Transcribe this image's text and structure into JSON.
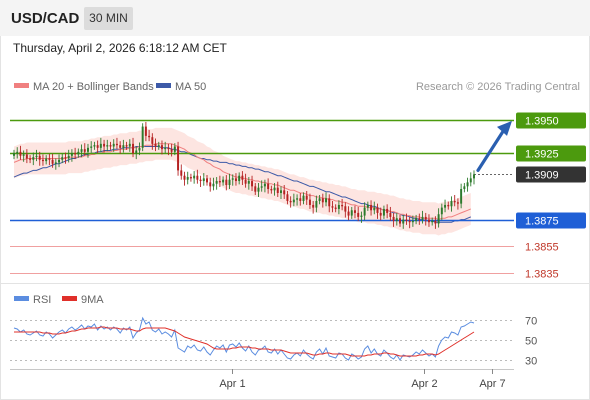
{
  "header": {
    "symbol": "USD/CAD",
    "timeframe": "30 MIN",
    "datetime": "Thursday, April 2, 2026 6:18:12 AM CET"
  },
  "legend": {
    "ma20_bb": "MA 20 + Bollinger Bands",
    "ma50": "MA 50",
    "rsi": "RSI",
    "ma9": "9MA"
  },
  "credit": "Research © 2026 Trading Central",
  "colors": {
    "ma20": "#f08080",
    "bollinger_fill": "#fde0dc",
    "ma50": "#3d5aa8",
    "resistance": "#4c9a0e",
    "support": "#1f5fd6",
    "support_light": "#f0a0a0",
    "current_price_bg": "#333333",
    "candle_up": "#2c7a2c",
    "candle_down": "#b52222",
    "rsi_line": "#5b8de0",
    "rsi_ma": "#e0302a",
    "arrow": "#2a5fb0"
  },
  "chart_data": {
    "type": "candlestick",
    "symbol": "USD/CAD",
    "interval": "30 MIN",
    "ylim": [
      1.3828,
      1.3965
    ],
    "x_ticks": [
      "Apr 1",
      "Apr 2",
      "Apr 7"
    ],
    "levels": [
      {
        "value": 1.395,
        "label": "1.3950",
        "kind": "resistance"
      },
      {
        "value": 1.3925,
        "label": "1.3925",
        "kind": "resistance"
      },
      {
        "value": 1.3909,
        "label": "1.3909",
        "kind": "current"
      },
      {
        "value": 1.3875,
        "label": "1.3875",
        "kind": "support"
      },
      {
        "value": 1.3855,
        "label": "1.3855",
        "kind": "support"
      },
      {
        "value": 1.3835,
        "label": "1.3835",
        "kind": "support"
      }
    ],
    "close": [
      1.3925,
      1.3926,
      1.3923,
      1.3924,
      1.3921,
      1.392,
      1.3922,
      1.3923,
      1.392,
      1.3919,
      1.3921,
      1.392,
      1.3917,
      1.3918,
      1.392,
      1.3922,
      1.3921,
      1.3923,
      1.3925,
      1.3924,
      1.3926,
      1.3928,
      1.3926,
      1.3929,
      1.393,
      1.3931,
      1.3929,
      1.3932,
      1.393,
      1.3931,
      1.393,
      1.3932,
      1.3931,
      1.3929,
      1.3931,
      1.393,
      1.3932,
      1.3925,
      1.3927,
      1.3929,
      1.3945,
      1.3938,
      1.3937,
      1.3932,
      1.393,
      1.3931,
      1.3928,
      1.3929,
      1.3928,
      1.3926,
      1.393,
      1.3912,
      1.3908,
      1.3905,
      1.3907,
      1.3906,
      1.3908,
      1.3905,
      1.3904,
      1.3906,
      1.3903,
      1.39,
      1.3902,
      1.3904,
      1.3903,
      1.3905,
      1.3901,
      1.3905,
      1.3906,
      1.3904,
      1.3908,
      1.3905,
      1.3902,
      1.3904,
      1.39,
      1.3896,
      1.3899,
      1.39,
      1.3902,
      1.3898,
      1.3897,
      1.3899,
      1.3895,
      1.3897,
      1.3894,
      1.3889,
      1.3888,
      1.389,
      1.3891,
      1.3889,
      1.3893,
      1.389,
      1.3886,
      1.3884,
      1.3889,
      1.3891,
      1.3888,
      1.3891,
      1.3885,
      1.3884,
      1.3883,
      1.3886,
      1.3885,
      1.3881,
      1.3878,
      1.3882,
      1.388,
      1.3877,
      1.3878,
      1.3884,
      1.3886,
      1.3882,
      1.3884,
      1.388,
      1.3878,
      1.3883,
      1.388,
      1.3877,
      1.3874,
      1.3876,
      1.3872,
      1.3875,
      1.3874,
      1.3873,
      1.3874,
      1.3876,
      1.3875,
      1.3877,
      1.3875,
      1.3873,
      1.3874,
      1.3872,
      1.3879,
      1.3884,
      1.3886,
      1.3885,
      1.3889,
      1.3888,
      1.3887,
      1.3898,
      1.39,
      1.3903,
      1.3906,
      1.3909
    ],
    "ma20": [
      1.3918,
      1.3919,
      1.392,
      1.392,
      1.3921,
      1.3921,
      1.3921,
      1.3921,
      1.3921,
      1.3921,
      1.3921,
      1.3921,
      1.3921,
      1.3921,
      1.3921,
      1.3921,
      1.3921,
      1.3922,
      1.3922,
      1.3922,
      1.3922,
      1.3922,
      1.3923,
      1.3923,
      1.3924,
      1.3924,
      1.3925,
      1.3925,
      1.3926,
      1.3926,
      1.3926,
      1.3927,
      1.3927,
      1.3928,
      1.3928,
      1.3928,
      1.3929,
      1.3929,
      1.3929,
      1.393,
      1.393,
      1.3931,
      1.3931,
      1.3931,
      1.3932,
      1.3932,
      1.3932,
      1.3932,
      1.3932,
      1.3932,
      1.3931,
      1.393,
      1.3929,
      1.3928,
      1.3926,
      1.3925,
      1.3924,
      1.3922,
      1.3921,
      1.392,
      1.3918,
      1.3917,
      1.3915,
      1.3914,
      1.3913,
      1.3911,
      1.391,
      1.3909,
      1.3908,
      1.3907,
      1.3907,
      1.3906,
      1.3906,
      1.3905,
      1.3905,
      1.3904,
      1.3904,
      1.3903,
      1.3903,
      1.3902,
      1.3902,
      1.3901,
      1.3901,
      1.39,
      1.3899,
      1.3898,
      1.3897,
      1.3897,
      1.3896,
      1.3895,
      1.3895,
      1.3894,
      1.3893,
      1.3893,
      1.3892,
      1.3892,
      1.3891,
      1.3891,
      1.389,
      1.389,
      1.3889,
      1.3889,
      1.3888,
      1.3888,
      1.3887,
      1.3886,
      1.3886,
      1.3885,
      1.3885,
      1.3885,
      1.3884,
      1.3884,
      1.3884,
      1.3883,
      1.3883,
      1.3882,
      1.3882,
      1.3881,
      1.3881,
      1.388,
      1.3879,
      1.3879,
      1.3878,
      1.3878,
      1.3877,
      1.3877,
      1.3877,
      1.3876,
      1.3876,
      1.3876,
      1.3876,
      1.3876,
      1.3875,
      1.3876,
      1.3876,
      1.3877,
      1.3877,
      1.3878,
      1.3879,
      1.388,
      1.3881,
      1.3882,
      1.3883
    ],
    "ma50": [
      1.3907,
      1.3908,
      1.3909,
      1.391,
      1.391,
      1.3911,
      1.3912,
      1.3912,
      1.3913,
      1.3914,
      1.3914,
      1.3915,
      1.3916,
      1.3917,
      1.3917,
      1.3918,
      1.3919,
      1.392,
      1.3921,
      1.3921,
      1.3922,
      1.3923,
      1.3924,
      1.3924,
      1.3925,
      1.3925,
      1.3926,
      1.3926,
      1.3927,
      1.3927,
      1.3927,
      1.3928,
      1.3928,
      1.3928,
      1.3929,
      1.3929,
      1.3929,
      1.3929,
      1.393,
      1.393,
      1.393,
      1.393,
      1.393,
      1.393,
      1.393,
      1.393,
      1.3929,
      1.3929,
      1.3929,
      1.3928,
      1.3928,
      1.3927,
      1.3926,
      1.3926,
      1.3925,
      1.3924,
      1.3923,
      1.3922,
      1.3921,
      1.3921,
      1.392,
      1.392,
      1.3919,
      1.3919,
      1.3918,
      1.3918,
      1.3918,
      1.3917,
      1.3917,
      1.3916,
      1.3916,
      1.3915,
      1.3915,
      1.3914,
      1.3914,
      1.3913,
      1.3913,
      1.3912,
      1.3911,
      1.3911,
      1.391,
      1.3909,
      1.3908,
      1.3908,
      1.3907,
      1.3906,
      1.3905,
      1.3904,
      1.3904,
      1.3903,
      1.3902,
      1.3901,
      1.39,
      1.39,
      1.3899,
      1.3898,
      1.3897,
      1.3896,
      1.3896,
      1.3895,
      1.3894,
      1.3893,
      1.3892,
      1.3892,
      1.3891,
      1.389,
      1.3889,
      1.3888,
      1.3887,
      1.3887,
      1.3886,
      1.3885,
      1.3885,
      1.3884,
      1.3883,
      1.3882,
      1.3882,
      1.3881,
      1.388,
      1.388,
      1.3879,
      1.3878,
      1.3878,
      1.3877,
      1.3876,
      1.3876,
      1.3875,
      1.3875,
      1.3874,
      1.3874,
      1.3874,
      1.3873,
      1.3873,
      1.3873,
      1.3873,
      1.3873,
      1.3873,
      1.3874,
      1.3874,
      1.3875,
      1.3875,
      1.3876,
      1.3877
    ],
    "bb_width": 0.0012,
    "rsi": {
      "ylim": [
        20,
        80
      ],
      "ticks": [
        70,
        50,
        30
      ],
      "rsi": [
        62,
        61,
        58,
        60,
        56,
        55,
        57,
        59,
        55,
        54,
        58,
        56,
        52,
        55,
        58,
        60,
        57,
        61,
        63,
        60,
        62,
        65,
        61,
        64,
        63,
        66,
        60,
        64,
        61,
        63,
        60,
        63,
        61,
        57,
        62,
        60,
        63,
        52,
        57,
        60,
        72,
        66,
        68,
        60,
        58,
        61,
        56,
        58,
        56,
        53,
        60,
        42,
        40,
        38,
        44,
        42,
        45,
        40,
        39,
        43,
        38,
        35,
        40,
        44,
        42,
        45,
        38,
        45,
        46,
        43,
        47,
        42,
        39,
        44,
        38,
        35,
        40,
        41,
        44,
        38,
        37,
        41,
        36,
        40,
        36,
        32,
        31,
        35,
        37,
        34,
        40,
        36,
        33,
        31,
        38,
        41,
        36,
        42,
        34,
        33,
        32,
        37,
        36,
        32,
        30,
        36,
        34,
        31,
        33,
        41,
        44,
        37,
        41,
        36,
        34,
        40,
        37,
        33,
        31,
        35,
        30,
        35,
        34,
        33,
        35,
        38,
        36,
        40,
        37,
        34,
        36,
        33,
        44,
        50,
        53,
        52,
        58,
        57,
        55,
        63,
        64,
        66,
        68,
        67
      ],
      "rsi_ma": [
        58,
        58,
        58,
        58,
        58,
        58,
        58,
        58,
        58,
        57,
        57,
        57,
        56,
        56,
        56,
        57,
        57,
        58,
        59,
        59,
        60,
        61,
        61,
        62,
        62,
        62,
        62,
        63,
        63,
        62,
        62,
        62,
        62,
        61,
        61,
        61,
        61,
        60,
        59,
        59,
        61,
        62,
        62,
        62,
        62,
        62,
        62,
        62,
        61,
        60,
        59,
        57,
        55,
        53,
        52,
        51,
        50,
        49,
        48,
        47,
        46,
        44,
        42,
        41,
        41,
        41,
        41,
        41,
        42,
        42,
        43,
        43,
        43,
        43,
        42,
        42,
        41,
        41,
        41,
        41,
        40,
        40,
        40,
        40,
        39,
        38,
        37,
        37,
        37,
        37,
        37,
        37,
        36,
        35,
        35,
        36,
        36,
        37,
        37,
        36,
        36,
        36,
        36,
        36,
        35,
        34,
        34,
        34,
        34,
        34,
        35,
        35,
        36,
        36,
        36,
        37,
        37,
        36,
        36,
        35,
        34,
        34,
        34,
        34,
        34,
        34,
        35,
        35,
        36,
        36,
        36,
        35,
        36,
        38,
        40,
        42,
        44,
        46,
        48,
        50,
        52,
        54,
        56,
        58
      ]
    }
  }
}
